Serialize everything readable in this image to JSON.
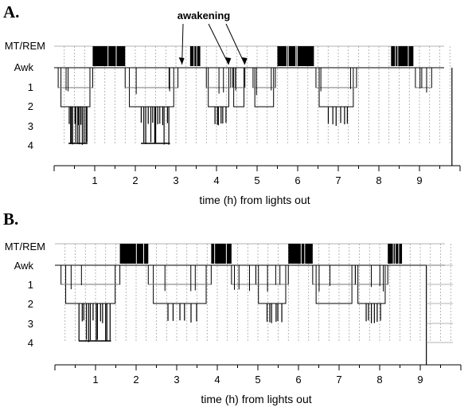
{
  "chart_data": [
    {
      "type": "hypnogram",
      "panel_label": "A.",
      "xlabel": "time (h) from lights out",
      "x_ticks": [
        "1",
        "2",
        "3",
        "4",
        "5",
        "6",
        "7",
        "8",
        "9"
      ],
      "xlim": [
        0,
        10
      ],
      "y_levels": [
        "MT/REM",
        "Awk",
        "1",
        "2",
        "3",
        "4"
      ],
      "annotation": "awakening",
      "annotation_targets": [
        3.15,
        4.3,
        4.7
      ],
      "rem_blocks": [
        [
          0.95,
          1.75
        ],
        [
          3.35,
          3.6
        ],
        [
          5.5,
          6.4
        ],
        [
          8.3,
          8.85
        ]
      ],
      "cycles": [
        {
          "start": 0.1,
          "end": 0.95,
          "max_depth": 4
        },
        {
          "start": 1.75,
          "end": 3.05,
          "max_depth": 4
        },
        {
          "start": 3.75,
          "end": 4.35,
          "max_depth": 3
        },
        {
          "start": 4.4,
          "end": 4.7,
          "max_depth": 2
        },
        {
          "start": 4.9,
          "end": 5.45,
          "max_depth": 2
        },
        {
          "start": 6.45,
          "end": 7.45,
          "max_depth": 3
        },
        {
          "start": 8.9,
          "end": 9.3,
          "max_depth": 1
        }
      ],
      "final_wake_start": 9.8,
      "colors": {
        "rem": "#000000",
        "line": "#000000",
        "grid": "#9a9a9a"
      }
    },
    {
      "type": "hypnogram",
      "panel_label": "B.",
      "xlabel": "time (h) from lights out",
      "x_ticks": [
        "1",
        "2",
        "3",
        "4",
        "5",
        "6",
        "7",
        "8",
        "9"
      ],
      "xlim": [
        0,
        10
      ],
      "y_levels": [
        "MT/REM",
        "Awk",
        "1",
        "2",
        "3",
        "4"
      ],
      "rem_blocks": [
        [
          1.6,
          2.3
        ],
        [
          3.85,
          4.35
        ],
        [
          5.75,
          6.35
        ],
        [
          8.2,
          8.55
        ]
      ],
      "cycles": [
        {
          "start": 0.15,
          "end": 1.6,
          "max_depth": 4
        },
        {
          "start": 2.3,
          "end": 3.85,
          "max_depth": 3
        },
        {
          "start": 4.35,
          "end": 4.95,
          "max_depth": 1
        },
        {
          "start": 4.95,
          "end": 5.75,
          "max_depth": 3
        },
        {
          "start": 6.35,
          "end": 7.4,
          "max_depth": 2
        },
        {
          "start": 7.4,
          "end": 8.2,
          "max_depth": 3
        }
      ],
      "final_wake_start": 9.15,
      "colors": {
        "rem": "#000000",
        "line": "#000000",
        "grid": "#9a9a9a"
      }
    }
  ]
}
